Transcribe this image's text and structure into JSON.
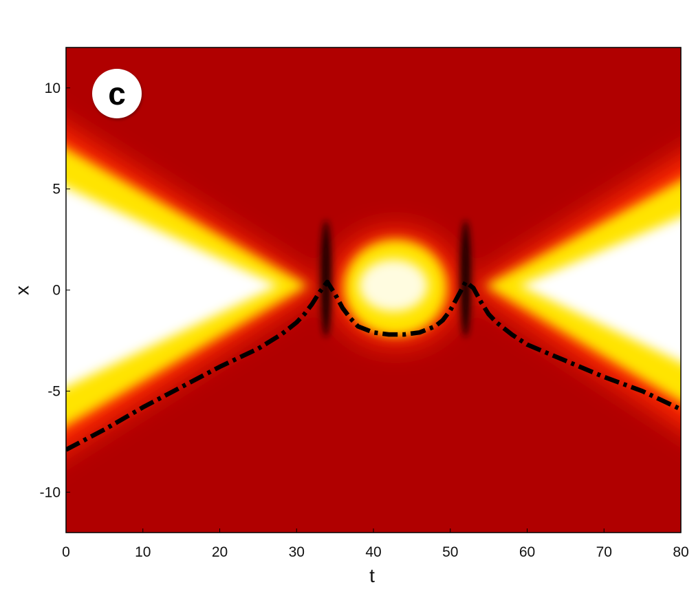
{
  "chart_data": {
    "type": "heatmap",
    "panel_label": "c",
    "xlabel": "t",
    "ylabel": "x",
    "xlim": [
      0,
      80
    ],
    "ylim": [
      -12,
      12
    ],
    "xticks": [
      0,
      10,
      20,
      30,
      40,
      50,
      60,
      70,
      80
    ],
    "yticks": [
      10,
      5,
      0,
      -5,
      -10
    ],
    "grid": false,
    "colormap": [
      "#a80000",
      "#e00000",
      "#ff3000",
      "#ffd000",
      "#ffff60",
      "#ffffff"
    ],
    "colors": {
      "background_field": "#b00000",
      "trajectory": "#000000"
    },
    "collision_times": [
      34,
      52
    ],
    "series": [
      {
        "line_style": "dash-dot",
        "x": [
          0,
          5,
          10,
          15,
          20,
          25,
          28,
          30,
          31,
          32,
          33,
          34,
          35,
          36,
          37,
          38,
          40,
          42,
          44,
          46,
          48,
          49,
          50,
          51,
          52,
          53,
          54,
          55,
          56,
          58,
          60,
          65,
          70,
          75,
          80
        ],
        "y": [
          -7.9,
          -6.9,
          -5.8,
          -4.8,
          -3.8,
          -2.9,
          -2.2,
          -1.6,
          -1.2,
          -0.7,
          -0.1,
          0.4,
          -0.2,
          -0.9,
          -1.4,
          -1.8,
          -2.1,
          -2.2,
          -2.2,
          -2.1,
          -1.8,
          -1.5,
          -1.0,
          -0.3,
          0.4,
          0.1,
          -0.6,
          -1.2,
          -1.6,
          -2.2,
          -2.7,
          -3.5,
          -4.3,
          -5.0,
          -5.9
        ]
      }
    ]
  }
}
